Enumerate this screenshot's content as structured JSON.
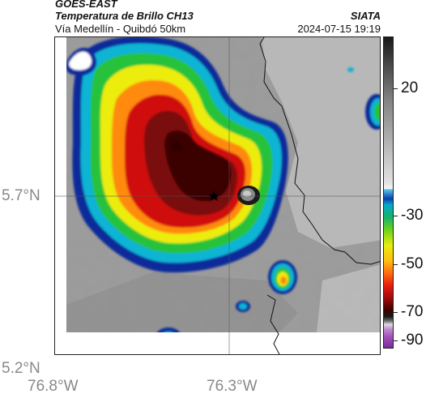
{
  "header": {
    "satellite": "GOES-EAST",
    "product": "Temperatura de Brillo CH13",
    "route": "Vía Medellín - Quibdó 50km",
    "agency": "SIATA",
    "timestamp": "2024-07-15 19:19"
  },
  "axes": {
    "lat_labels": [
      "5.7°N",
      "5.2°N"
    ],
    "lon_labels": [
      "76.8°W",
      "76.3°W"
    ]
  },
  "colorbar": {
    "ticks": [
      "20",
      "-30",
      "-50",
      "-70",
      "-90"
    ]
  },
  "colors": {
    "cold_core": "#3a0000",
    "red": "#d01010",
    "orange": "#ff8a10",
    "yellow": "#ecec10",
    "green": "#27c23a",
    "cyan": "#10b4d4",
    "blue": "#0a2a9a",
    "cloud_free": "#9a9a9a"
  },
  "marker": {
    "icon": "star-icon"
  }
}
